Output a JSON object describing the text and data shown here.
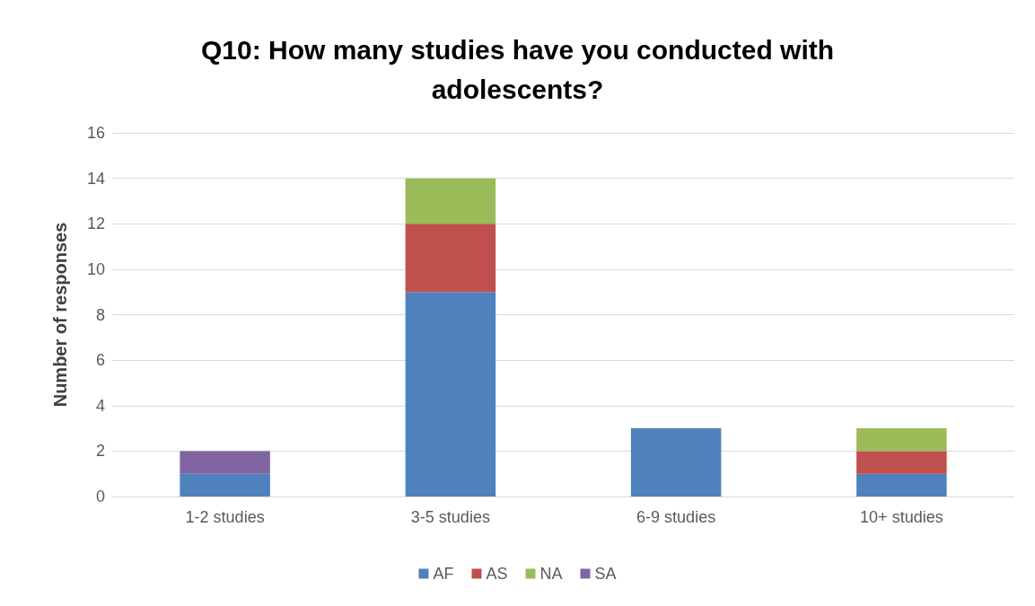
{
  "chart_data": {
    "type": "bar",
    "title": "Q10: How many studies have you conducted with\nadolescents?",
    "ylabel": "Number of responses",
    "categories": [
      "1-2 studies",
      "3-5 studies",
      "6-9 studies",
      "10+ studies"
    ],
    "series": [
      {
        "name": "AF",
        "color": "#4f81bd",
        "values": [
          1,
          9,
          3,
          1
        ]
      },
      {
        "name": "AS",
        "color": "#c0504d",
        "values": [
          null,
          3,
          null,
          1
        ]
      },
      {
        "name": "NA",
        "color": "#9bbb59",
        "values": [
          null,
          2,
          null,
          1
        ]
      },
      {
        "name": "SA",
        "color": "#8064a2",
        "values": [
          1,
          null,
          null,
          null
        ]
      }
    ],
    "stacked": true,
    "ylim": [
      0,
      16
    ],
    "yticks": [
      0,
      2,
      4,
      6,
      8,
      10,
      12,
      14,
      16
    ],
    "grid": "y",
    "legend": "bottom"
  }
}
